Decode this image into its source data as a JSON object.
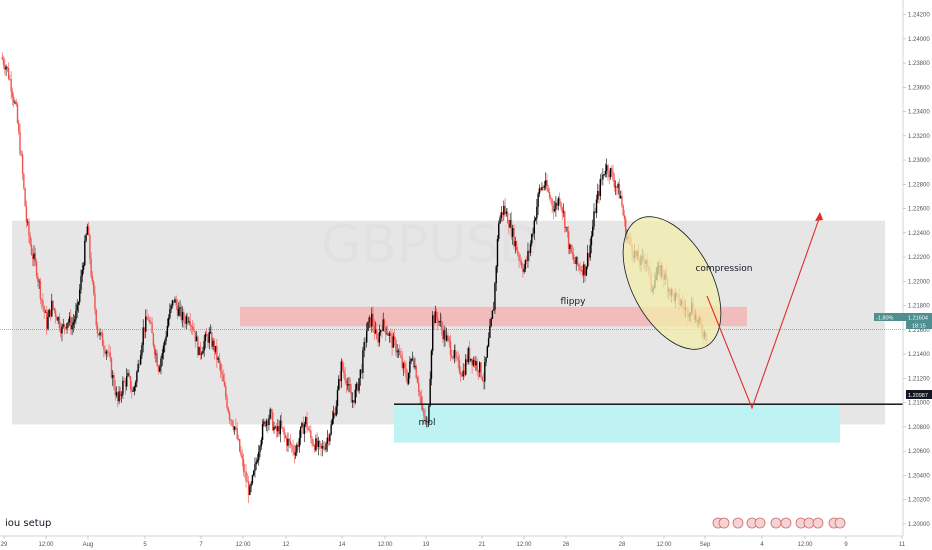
{
  "chart_data": {
    "type": "candlestick",
    "symbol_watermark": "GBPUSD",
    "y_axis": {
      "ylim": [
        1.199,
        1.2432
      ],
      "ticks": [
        "1.24200",
        "1.24000",
        "1.23800",
        "1.23600",
        "1.23400",
        "1.23200",
        "1.23000",
        "1.22800",
        "1.22600",
        "1.22400",
        "1.22200",
        "1.22000",
        "1.21800",
        "1.21600",
        "1.21400",
        "1.21200",
        "1.21000",
        "1.20800",
        "1.20600",
        "1.20400",
        "1.20200",
        "1.20000"
      ]
    },
    "x_axis": {
      "ticks": [
        "29",
        "12:00",
        "Aug",
        "5",
        "7",
        "12:00",
        "12",
        "14",
        "12:00",
        "19",
        "21",
        "12:00",
        "26",
        "28",
        "12:00",
        "Sep",
        "4",
        "12:00",
        "9",
        "11"
      ]
    },
    "price_path": [
      1.2385,
      1.2378,
      1.2362,
      1.234,
      1.23,
      1.225,
      1.2225,
      1.221,
      1.2185,
      1.2165,
      1.218,
      1.2172,
      1.216,
      1.2168,
      1.2164,
      1.2175,
      1.221,
      1.2245,
      1.2195,
      1.216,
      1.215,
      1.2142,
      1.212,
      1.21,
      1.2115,
      1.212,
      1.2108,
      1.213,
      1.216,
      1.217,
      1.215,
      1.213,
      1.2145,
      1.217,
      1.2185,
      1.2175,
      1.2168,
      1.2172,
      1.216,
      1.214,
      1.215,
      1.2155,
      1.2145,
      1.213,
      1.211,
      1.209,
      1.208,
      1.206,
      1.204,
      1.2025,
      1.2045,
      1.207,
      1.2085,
      1.209,
      1.2075,
      1.208,
      1.207,
      1.2065,
      1.206,
      1.2075,
      1.2085,
      1.207,
      1.2065,
      1.206,
      1.2068,
      1.208,
      1.21,
      1.213,
      1.212,
      1.21,
      1.211,
      1.213,
      1.216,
      1.217,
      1.215,
      1.2165,
      1.216,
      1.215,
      1.2145,
      1.213,
      1.212,
      1.214,
      1.212,
      1.209,
      1.208,
      1.217,
      1.217,
      1.2158,
      1.215,
      1.214,
      1.213,
      1.2125,
      1.214,
      1.2135,
      1.213,
      1.212,
      1.215,
      1.218,
      1.225,
      1.226,
      1.225,
      1.2235,
      1.222,
      1.221,
      1.2225,
      1.225,
      1.2275,
      1.228,
      1.227,
      1.226,
      1.227,
      1.225,
      1.2225,
      1.2215,
      1.2212,
      1.221,
      1.223,
      1.226,
      1.228,
      1.2295,
      1.229,
      1.228,
      1.227,
      1.224,
      1.223,
      1.222,
      1.2215,
      1.222,
      1.2195,
      1.2205,
      1.221,
      1.22,
      1.219,
      1.2185,
      1.2182,
      1.2175,
      1.218,
      1.2168,
      1.216,
      1.2155
    ],
    "series": [
      {
        "name": "GBPUSD",
        "last_price": 1.21604,
        "change_pct": "-1.80%",
        "countdown": "18:15"
      }
    ],
    "horizontal_level": {
      "value": 1.20987,
      "label": "1.20987"
    },
    "zones": [
      {
        "name": "range-zone",
        "y_top": 1.225,
        "y_bottom": 1.2082,
        "color": "#e6e6e6",
        "label": ""
      },
      {
        "name": "flippy-zone",
        "y_top": 1.2179,
        "y_bottom": 1.2163,
        "color": "#f4b4b4",
        "label": "flippy"
      },
      {
        "name": "mpl-zone",
        "y_top": 1.2098,
        "y_bottom": 1.2067,
        "color": "#bff2f2",
        "label": "mpl"
      }
    ],
    "annotations": {
      "compression": "compression",
      "setup": "iou setup"
    },
    "colors": {
      "up": "#000000",
      "down": "#ef5350",
      "level_line": "#000000",
      "projection": "#e02d2d",
      "ellipse_fill": "#f2eeaa",
      "price_line": "#4f8f8f"
    },
    "grid": false
  }
}
